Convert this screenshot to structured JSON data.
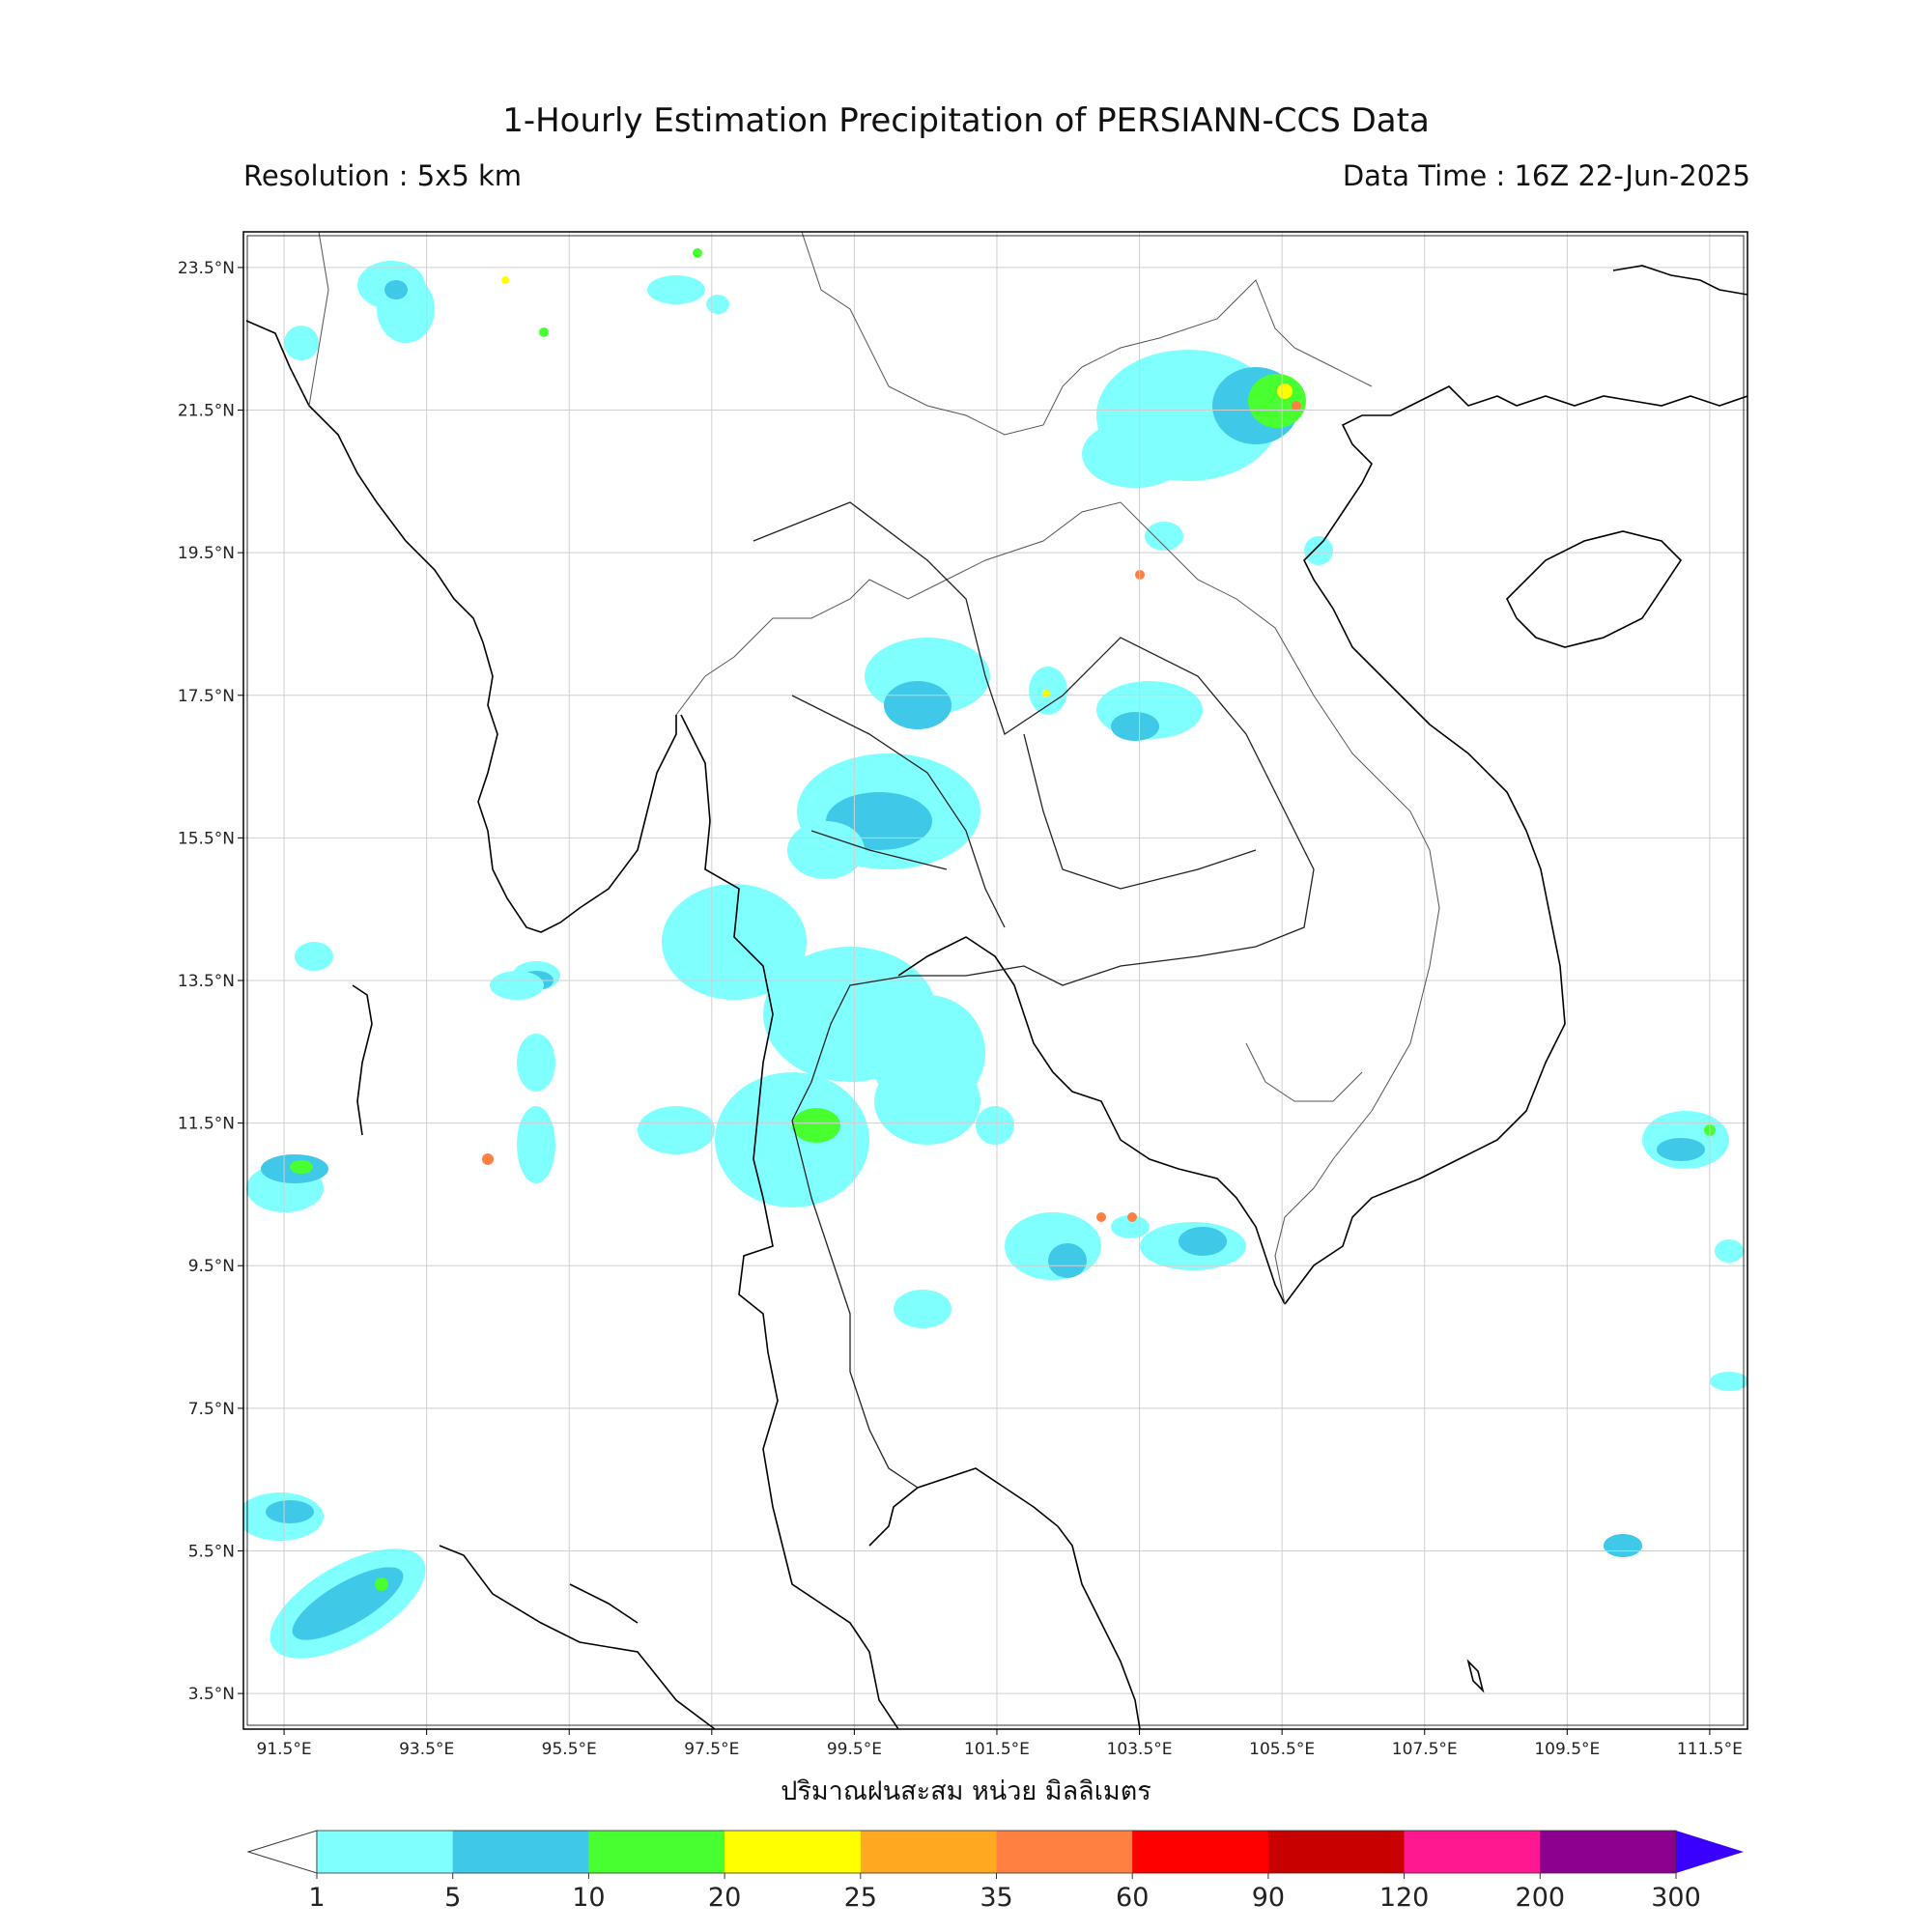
{
  "title": "1-Hourly Estimation Precipitation of PERSIANN-CCS Data",
  "resolution": "Resolution : 5x5 km",
  "data_time": "Data Time : 16Z 22-Jun-2025",
  "map": {
    "lat_range": [
      3.0,
      24.0
    ],
    "lon_range": [
      90.93,
      112.03
    ],
    "lat_ticks": [
      "23.5°N",
      "21.5°N",
      "19.5°N",
      "17.5°N",
      "15.5°N",
      "13.5°N",
      "11.5°N",
      "9.5°N",
      "7.5°N",
      "5.5°N",
      "3.5°N"
    ],
    "lon_ticks": [
      "91.5°E",
      "93.5°E",
      "95.5°E",
      "97.5°E",
      "99.5°E",
      "101.5°E",
      "103.5°E",
      "105.5°E",
      "107.5°E",
      "109.5°E",
      "111.5°E"
    ],
    "grid": true
  },
  "colorbar": {
    "label": "ปริมาณฝนสะสม หน่วย มิลลิเมตร",
    "ticks": [
      "1",
      "5",
      "10",
      "20",
      "25",
      "35",
      "60",
      "90",
      "120",
      "200",
      "300"
    ],
    "colors": [
      "#80ffff",
      "#40c8e8",
      "#48ff30",
      "#ffff00",
      "#ffa820",
      "#ff8040",
      "#ff0000",
      "#c80000",
      "#ff1890",
      "#8c0090"
    ],
    "extend_low_color": "#ffffff",
    "extend_high_color": "#3a00ff"
  },
  "rain_colors": {
    "light": "#80ffff",
    "moderate": "#40c8e8",
    "heavy": "#48ff30",
    "intense": "#ffff00",
    "extreme": "#ff8040"
  }
}
